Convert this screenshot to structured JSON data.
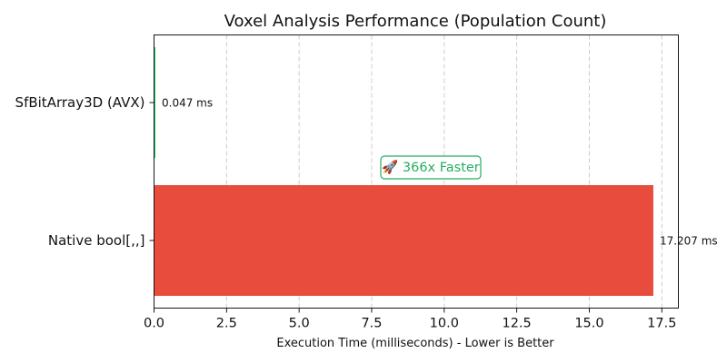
{
  "chart_data": {
    "type": "bar",
    "orientation": "horizontal",
    "title": "Voxel Analysis Performance (Population Count)",
    "xlabel": "Execution Time (milliseconds) - Lower is Better",
    "ylabel": "",
    "xlim": [
      0,
      18.07
    ],
    "xticks": [
      0,
      2.5,
      5,
      7.5,
      10,
      12.5,
      15,
      17.5
    ],
    "xtick_labels": [
      "0.0",
      "2.5",
      "5.0",
      "7.5",
      "10.0",
      "12.5",
      "15.0",
      "17.5"
    ],
    "grid": "x-dashed",
    "categories": [
      "SfBitArray3D (AVX)",
      "Native bool[,,]"
    ],
    "values": [
      0.047,
      17.207
    ],
    "value_labels": [
      "0.047 ms",
      "17.207 ms"
    ],
    "bar_colors": [
      "#2ecc71",
      "#e74c3c"
    ],
    "annotation": {
      "text": "🚀 366x Faster",
      "color": "#27ae60"
    }
  }
}
